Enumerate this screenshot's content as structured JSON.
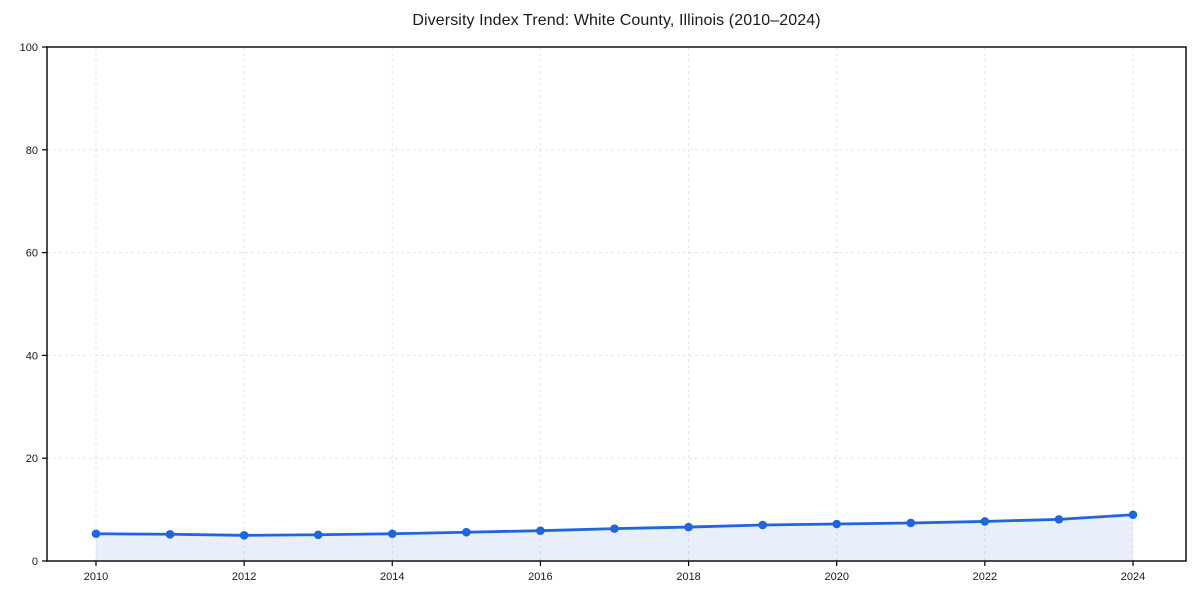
{
  "chart_data": {
    "type": "line",
    "title": "Diversity Index Trend: White County, Illinois (2010–2024)",
    "x": [
      2010,
      2011,
      2012,
      2013,
      2014,
      2015,
      2016,
      2017,
      2018,
      2019,
      2020,
      2021,
      2022,
      2023,
      2024
    ],
    "series": [
      {
        "name": "Diversity Index",
        "values": [
          5.3,
          5.2,
          5.0,
          5.1,
          5.3,
          5.6,
          5.9,
          6.3,
          6.6,
          7.0,
          7.2,
          7.4,
          7.7,
          8.1,
          9.0
        ]
      }
    ],
    "xlabel": "",
    "ylabel": "",
    "xticks": [
      2010,
      2012,
      2014,
      2016,
      2018,
      2020,
      2022,
      2024
    ],
    "yticks": [
      0,
      20,
      40,
      60,
      80,
      100
    ],
    "ylim": [
      0,
      100
    ],
    "grid": "dashed",
    "legend_position": "none",
    "marker": "circle",
    "area_fill": true,
    "colors": {
      "line": "#1f66db",
      "marker": "#1f66db",
      "fill": "rgba(31,102,219,0.10)",
      "grid": "#e6e6e6",
      "border": "#000000",
      "tick_text": "#1a1a1a",
      "background": "#ffffff"
    }
  }
}
